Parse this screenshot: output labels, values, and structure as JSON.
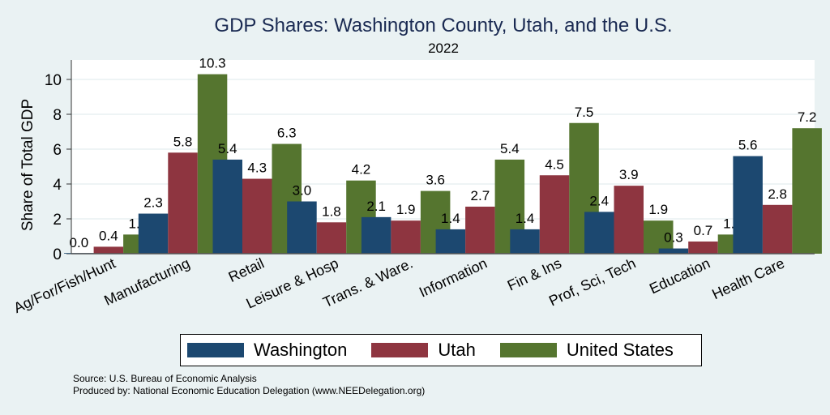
{
  "chart_data": {
    "type": "bar",
    "title": "GDP Shares: Washington County, Utah, and the U.S.",
    "subtitle": "2022",
    "xlabel": "",
    "ylabel": "Share of Total GDP",
    "ylim": [
      0,
      11
    ],
    "yticks": [
      0,
      2,
      4,
      6,
      8,
      10
    ],
    "grid": true,
    "legend_position": "bottom",
    "categories": [
      "Ag/For/Fish/Hunt",
      "Manufacturing",
      "Retail",
      "Leisure & Hosp",
      "Trans. & Ware.",
      "Information",
      "Fin & Ins",
      "Prof, Sci, Tech",
      "Education",
      "Health Care"
    ],
    "series": [
      {
        "name": "Washington",
        "color": "#1c4870",
        "values": [
          0.0,
          2.3,
          5.4,
          3.0,
          2.1,
          1.4,
          1.4,
          2.4,
          0.3,
          5.6
        ],
        "labels": [
          "0.0",
          "2.3",
          "5.4",
          "3.0",
          "2.1",
          "1.4",
          "1.4",
          "2.4",
          "0.3",
          "5.6"
        ]
      },
      {
        "name": "Utah",
        "color": "#8e3540",
        "values": [
          0.4,
          5.8,
          4.3,
          1.8,
          1.9,
          2.7,
          4.5,
          3.9,
          0.7,
          2.8
        ],
        "labels": [
          "0.4",
          "5.8",
          "4.3",
          "1.8",
          "1.9",
          "2.7",
          "4.5",
          "3.9",
          "0.7",
          "2.8"
        ]
      },
      {
        "name": "United States",
        "color": "#55752f",
        "values": [
          1.1,
          10.3,
          6.3,
          4.2,
          3.6,
          5.4,
          7.5,
          1.9,
          1.1,
          7.2
        ],
        "labels": [
          "1.1",
          "10.3",
          "6.3",
          "4.2",
          "3.6",
          "5.4",
          "7.5",
          "1.9",
          "1.1",
          "7.2"
        ]
      }
    ]
  },
  "footer": {
    "source": "Source: U.S. Bureau of Economic Analysis",
    "produced_by": "Produced by: National Economic Education Delegation (www.NEEDelegation.org)"
  }
}
